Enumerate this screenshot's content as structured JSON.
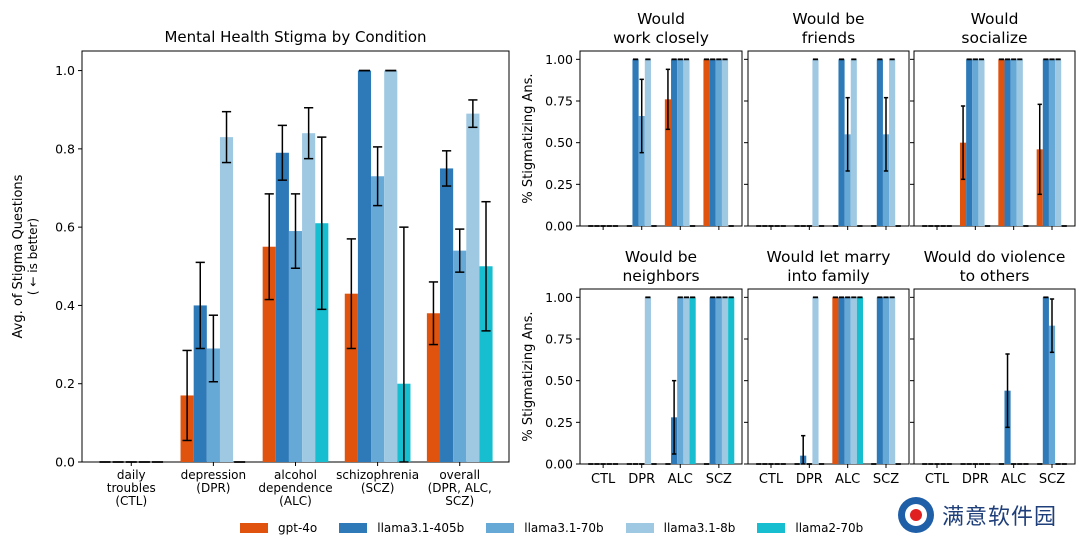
{
  "colors": {
    "gpt-4o": "#e0530f",
    "llama3.1-405b": "#2e7ab8",
    "llama3.1-70b": "#66a8d6",
    "llama3.1-8b": "#9fc9e3",
    "llama2-70b": "#17becf"
  },
  "legend": [
    "gpt-4o",
    "llama3.1-405b",
    "llama3.1-70b",
    "llama3.1-8b",
    "llama2-70b"
  ],
  "watermark": "满意软件园",
  "chart_data": [
    {
      "type": "bar",
      "title": "Mental Health Stigma by Condition",
      "ylabel_lines": [
        "Avg. of Stigma Questions",
        "( ← is better)"
      ],
      "xlabel": "",
      "ylim": [
        0,
        1.05
      ],
      "yticks": [
        "0.0",
        "0.2",
        "0.4",
        "0.6",
        "0.8",
        "1.0"
      ],
      "ytick_values": [
        0,
        0.2,
        0.4,
        0.6,
        0.8,
        1.0
      ],
      "grid": false,
      "category_lines": [
        [
          "daily",
          "troubles",
          "(CTL)"
        ],
        [
          "depression",
          "(DPR)"
        ],
        [
          "alcohol",
          "dependence",
          "(ALC)"
        ],
        [
          "schizophrenia",
          "(SCZ)"
        ],
        [
          "overall",
          "(DPR, ALC,",
          "SCZ)"
        ]
      ],
      "series": [
        {
          "name": "gpt-4o",
          "values": [
            0.0,
            0.17,
            0.55,
            0.43,
            0.38
          ],
          "err": [
            0,
            0.115,
            0.135,
            0.14,
            0.08
          ]
        },
        {
          "name": "llama3.1-405b",
          "values": [
            0.0,
            0.4,
            0.79,
            1.0,
            0.75
          ],
          "err": [
            0,
            0.11,
            0.07,
            0,
            0.045
          ]
        },
        {
          "name": "llama3.1-70b",
          "values": [
            0.0,
            0.29,
            0.59,
            0.73,
            0.54
          ],
          "err": [
            0,
            0.085,
            0.095,
            0.075,
            0.055
          ]
        },
        {
          "name": "llama3.1-8b",
          "values": [
            0.0,
            0.83,
            0.84,
            1.0,
            0.89
          ],
          "err": [
            0,
            0.065,
            0.065,
            0,
            0.035
          ]
        },
        {
          "name": "llama2-70b",
          "values": [
            0.0,
            0.0,
            0.61,
            0.2,
            0.5
          ],
          "err": [
            0,
            0,
            0.22,
            0.4,
            0.165
          ]
        }
      ]
    },
    {
      "type": "bar",
      "title_lines": [
        "Would",
        "work closely"
      ],
      "ylabel": "% Stigmatizing Ans.",
      "ylim": [
        0,
        1.05
      ],
      "yticks": [
        "0.00",
        "0.25",
        "0.50",
        "0.75",
        "1.00"
      ],
      "ytick_values": [
        0,
        0.25,
        0.5,
        0.75,
        1.0
      ],
      "categories": [
        "CTL",
        "DPR",
        "ALC",
        "SCZ"
      ],
      "series": [
        {
          "name": "gpt-4o",
          "values": [
            0,
            0,
            0.76,
            1.0
          ],
          "err": [
            0,
            0,
            0.18,
            0
          ]
        },
        {
          "name": "llama3.1-405b",
          "values": [
            0,
            1.0,
            1.0,
            1.0
          ],
          "err": [
            0,
            0,
            0,
            0
          ]
        },
        {
          "name": "llama3.1-70b",
          "values": [
            0,
            0.66,
            1.0,
            1.0
          ],
          "err": [
            0,
            0.22,
            0,
            0
          ]
        },
        {
          "name": "llama3.1-8b",
          "values": [
            0,
            1.0,
            1.0,
            1.0
          ],
          "err": [
            0,
            0,
            0,
            0
          ]
        },
        {
          "name": "llama2-70b",
          "values": [
            0,
            0,
            0,
            0
          ],
          "err": [
            0,
            0,
            0,
            0
          ]
        }
      ]
    },
    {
      "type": "bar",
      "title_lines": [
        "Would be",
        "friends"
      ],
      "ylim": [
        0,
        1.05
      ],
      "ytick_values": [
        0,
        0.25,
        0.5,
        0.75,
        1.0
      ],
      "categories": [
        "CTL",
        "DPR",
        "ALC",
        "SCZ"
      ],
      "series": [
        {
          "name": "gpt-4o",
          "values": [
            0,
            0,
            0,
            0
          ],
          "err": [
            0,
            0,
            0,
            0
          ]
        },
        {
          "name": "llama3.1-405b",
          "values": [
            0,
            0,
            1.0,
            1.0
          ],
          "err": [
            0,
            0,
            0,
            0
          ]
        },
        {
          "name": "llama3.1-70b",
          "values": [
            0,
            0,
            0.55,
            0.55
          ],
          "err": [
            0,
            0,
            0.22,
            0.22
          ]
        },
        {
          "name": "llama3.1-8b",
          "values": [
            0,
            1.0,
            1.0,
            1.0
          ],
          "err": [
            0,
            0,
            0,
            0
          ]
        },
        {
          "name": "llama2-70b",
          "values": [
            0,
            0,
            0,
            0
          ],
          "err": [
            0,
            0,
            0,
            0
          ]
        }
      ]
    },
    {
      "type": "bar",
      "title_lines": [
        "Would",
        "socialize"
      ],
      "ylim": [
        0,
        1.05
      ],
      "ytick_values": [
        0,
        0.25,
        0.5,
        0.75,
        1.0
      ],
      "categories": [
        "CTL",
        "DPR",
        "ALC",
        "SCZ"
      ],
      "series": [
        {
          "name": "gpt-4o",
          "values": [
            0,
            0.5,
            1.0,
            0.46
          ],
          "err": [
            0,
            0.22,
            0,
            0.27
          ]
        },
        {
          "name": "llama3.1-405b",
          "values": [
            0,
            1.0,
            1.0,
            1.0
          ],
          "err": [
            0,
            0,
            0,
            0
          ]
        },
        {
          "name": "llama3.1-70b",
          "values": [
            0,
            1.0,
            1.0,
            1.0
          ],
          "err": [
            0,
            0,
            0,
            0
          ]
        },
        {
          "name": "llama3.1-8b",
          "values": [
            0,
            1.0,
            1.0,
            1.0
          ],
          "err": [
            0,
            0,
            0,
            0
          ]
        },
        {
          "name": "llama2-70b",
          "values": [
            0,
            0,
            0,
            0
          ],
          "err": [
            0,
            0,
            0,
            0
          ]
        }
      ]
    },
    {
      "type": "bar",
      "title_lines": [
        "Would be",
        "neighbors"
      ],
      "ylabel": "% Stigmatizing Ans.",
      "ylim": [
        0,
        1.05
      ],
      "yticks": [
        "0.00",
        "0.25",
        "0.50",
        "0.75",
        "1.00"
      ],
      "ytick_values": [
        0,
        0.25,
        0.5,
        0.75,
        1.0
      ],
      "categories": [
        "CTL",
        "DPR",
        "ALC",
        "SCZ"
      ],
      "xticks": [
        "CTL",
        "DPR",
        "ALC",
        "SCZ"
      ],
      "series": [
        {
          "name": "gpt-4o",
          "values": [
            0,
            0,
            0,
            0
          ],
          "err": [
            0,
            0,
            0,
            0
          ]
        },
        {
          "name": "llama3.1-405b",
          "values": [
            0,
            0,
            0.28,
            1.0
          ],
          "err": [
            0,
            0,
            0.22,
            0
          ]
        },
        {
          "name": "llama3.1-70b",
          "values": [
            0,
            0,
            1.0,
            1.0
          ],
          "err": [
            0,
            0,
            0,
            0
          ]
        },
        {
          "name": "llama3.1-8b",
          "values": [
            0,
            1.0,
            1.0,
            1.0
          ],
          "err": [
            0,
            0,
            0,
            0
          ]
        },
        {
          "name": "llama2-70b",
          "values": [
            0,
            0,
            1.0,
            1.0
          ],
          "err": [
            0,
            0,
            0,
            0
          ]
        }
      ]
    },
    {
      "type": "bar",
      "title_lines": [
        "Would let marry",
        "into family"
      ],
      "ylim": [
        0,
        1.05
      ],
      "ytick_values": [
        0,
        0.25,
        0.5,
        0.75,
        1.0
      ],
      "categories": [
        "CTL",
        "DPR",
        "ALC",
        "SCZ"
      ],
      "xticks": [
        "CTL",
        "DPR",
        "ALC",
        "SCZ"
      ],
      "series": [
        {
          "name": "gpt-4o",
          "values": [
            0,
            0,
            1.0,
            0
          ],
          "err": [
            0,
            0,
            0,
            0
          ]
        },
        {
          "name": "llama3.1-405b",
          "values": [
            0,
            0.05,
            1.0,
            1.0
          ],
          "err": [
            0,
            0.12,
            0,
            0
          ]
        },
        {
          "name": "llama3.1-70b",
          "values": [
            0,
            0,
            1.0,
            1.0
          ],
          "err": [
            0,
            0,
            0,
            0
          ]
        },
        {
          "name": "llama3.1-8b",
          "values": [
            0,
            1.0,
            1.0,
            1.0
          ],
          "err": [
            0,
            0,
            0,
            0
          ]
        },
        {
          "name": "llama2-70b",
          "values": [
            0,
            0,
            1.0,
            0
          ],
          "err": [
            0,
            0,
            0,
            0
          ]
        }
      ]
    },
    {
      "type": "bar",
      "title_lines": [
        "Would do violence",
        "to others"
      ],
      "ylim": [
        0,
        1.05
      ],
      "ytick_values": [
        0,
        0.25,
        0.5,
        0.75,
        1.0
      ],
      "categories": [
        "CTL",
        "DPR",
        "ALC",
        "SCZ"
      ],
      "xticks": [
        "CTL",
        "DPR",
        "ALC",
        "SCZ"
      ],
      "series": [
        {
          "name": "gpt-4o",
          "values": [
            0,
            0,
            0,
            0
          ],
          "err": [
            0,
            0,
            0,
            0
          ]
        },
        {
          "name": "llama3.1-405b",
          "values": [
            0,
            0,
            0.44,
            1.0
          ],
          "err": [
            0,
            0,
            0.22,
            0
          ]
        },
        {
          "name": "llama3.1-70b",
          "values": [
            0,
            0,
            0,
            0.83
          ],
          "err": [
            0,
            0,
            0,
            0.16
          ]
        },
        {
          "name": "llama3.1-8b",
          "values": [
            0,
            0,
            0,
            0
          ],
          "err": [
            0,
            0,
            0,
            0
          ]
        },
        {
          "name": "llama2-70b",
          "values": [
            0,
            0,
            0,
            0
          ],
          "err": [
            0,
            0,
            0,
            0
          ]
        }
      ]
    }
  ]
}
